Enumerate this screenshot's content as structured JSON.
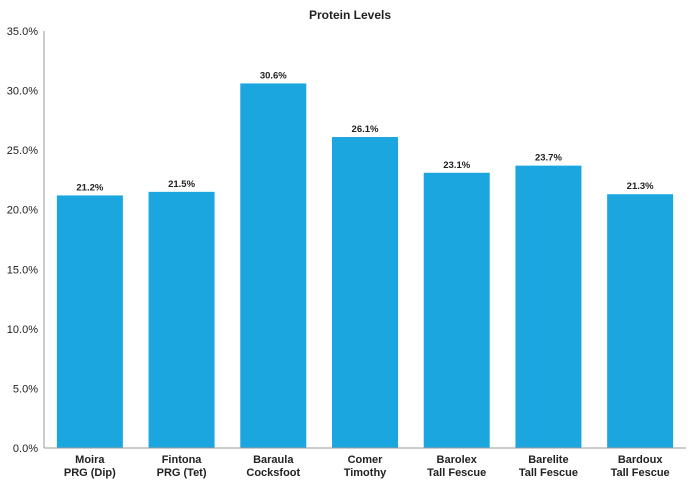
{
  "chart_data": {
    "type": "bar",
    "title": "Protein Levels",
    "categories": [
      [
        "Moira",
        "PRG (Dip)"
      ],
      [
        "Fintona",
        "PRG (Tet)"
      ],
      [
        "Baraula",
        "Cocksfoot"
      ],
      [
        "Comer",
        "Timothy"
      ],
      [
        "Barolex",
        "Tall Fescue"
      ],
      [
        "Barelite",
        "Tall Fescue"
      ],
      [
        "Bardoux",
        "Tall Fescue"
      ]
    ],
    "values": [
      21.2,
      21.5,
      30.6,
      26.1,
      23.1,
      23.7,
      21.3
    ],
    "data_labels": [
      "21.2%",
      "21.5%",
      "30.6%",
      "26.1%",
      "23.1%",
      "23.7%",
      "21.3%"
    ],
    "y_ticks": [
      "0.0%",
      "5.0%",
      "10.0%",
      "15.0%",
      "20.0%",
      "25.0%",
      "30.0%",
      "35.0%"
    ],
    "ylim": [
      0,
      35
    ],
    "xlabel": "",
    "ylabel": "",
    "grid": "none",
    "legend": "none",
    "bar_color": "#1ba6e0"
  }
}
